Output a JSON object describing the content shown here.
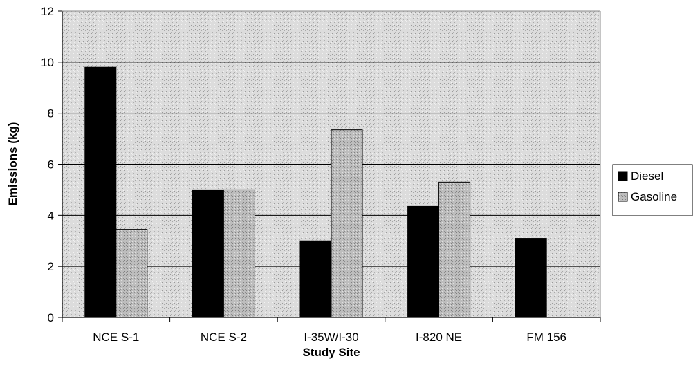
{
  "chart_data": {
    "type": "bar",
    "title": "",
    "xlabel": "Study Site",
    "ylabel": "Emissions (kg)",
    "ylim": [
      0,
      12
    ],
    "yticks": [
      0,
      2,
      4,
      6,
      8,
      10,
      12
    ],
    "grid": "horizontal",
    "legend_position": "right",
    "categories": [
      "NCE S-1",
      "NCE S-2",
      "I-35W/I-30",
      "I-820 NE",
      "FM 156"
    ],
    "series": [
      {
        "name": "Diesel",
        "values": [
          9.8,
          5.0,
          3.0,
          4.35,
          3.1
        ],
        "color": "#000000"
      },
      {
        "name": "Gasoline",
        "values": [
          3.45,
          5.0,
          7.35,
          5.3,
          0
        ],
        "color": "#b8b8b8"
      }
    ],
    "colors": {
      "plot_background": "#d6d6d6",
      "gridline": "#000000"
    }
  }
}
